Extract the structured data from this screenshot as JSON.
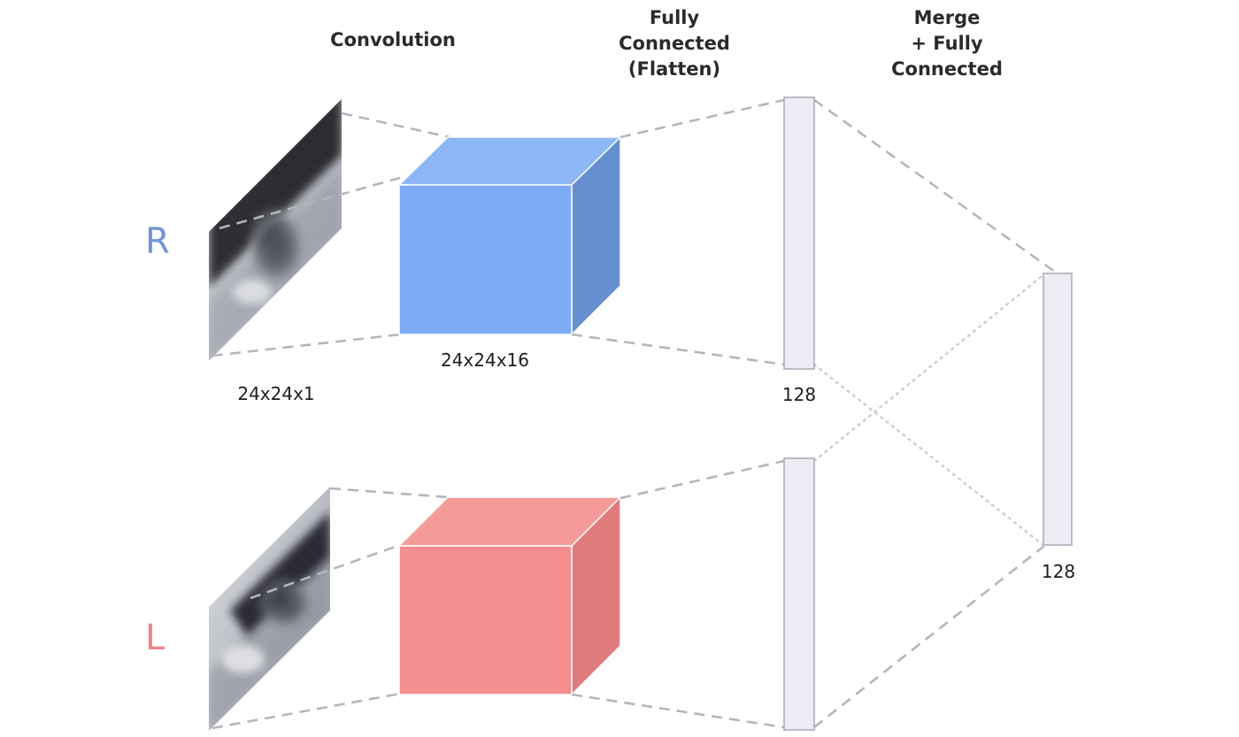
{
  "stages": {
    "convolution": "Convolution",
    "fc_flatten": [
      "Fully",
      "Connected",
      "(Flatten)"
    ],
    "merge_fc": [
      "Merge",
      "+ Fully",
      "Connected"
    ]
  },
  "eyes": {
    "right": {
      "letter": "R",
      "color": "#7196d6"
    },
    "left": {
      "letter": "L",
      "color": "#ee8486"
    }
  },
  "dims": {
    "input": "24x24x1",
    "conv": "24x24x16",
    "fc": "128",
    "merged": "128"
  },
  "colors": {
    "conv_right_front": "#7eaaf5",
    "conv_right_top": "#8cb6f5",
    "conv_right_side": "#668fd1",
    "conv_left_front": "#f58e8e",
    "conv_left_top": "#f49a99",
    "conv_left_side": "#e07b7e",
    "connector": "#b4b6bd",
    "fc_fill": "#ecedf4"
  }
}
